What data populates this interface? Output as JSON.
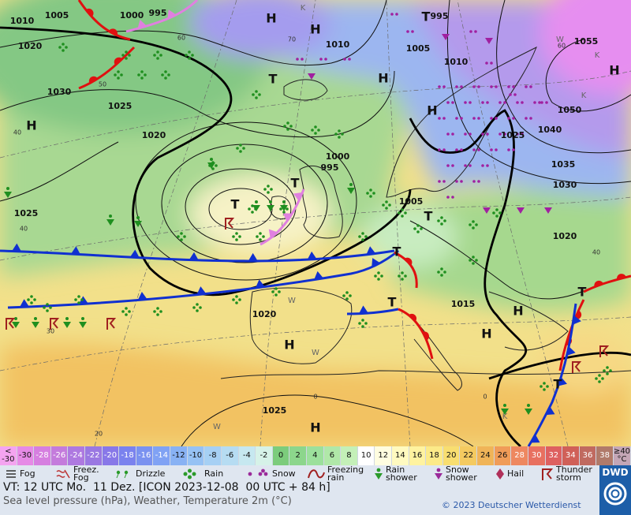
{
  "map": {
    "isobar_labels": [
      "1010",
      "1005",
      "1000",
      "995",
      "1020",
      "1030",
      "1025",
      "1020",
      "1000",
      "995",
      "1010",
      "995",
      "1005",
      "1010",
      "1055",
      "1050",
      "1040",
      "1025",
      "1035",
      "1030",
      "1020",
      "1005",
      "1025",
      "1015",
      "1020",
      "1025"
    ],
    "pressure_centers": [
      "H",
      "H",
      "H",
      "H",
      "H",
      "H",
      "H",
      "H",
      "H",
      "H",
      "T",
      "T",
      "T",
      "T",
      "T",
      "T",
      "T",
      "T",
      "T"
    ],
    "temperature_labels": [
      "40",
      "40",
      "30",
      "20",
      "60",
      "50",
      "70",
      "60",
      "40",
      "0",
      "0"
    ],
    "marker_letters": [
      "K",
      "K",
      "K",
      "K",
      "W",
      "W",
      "W",
      "W"
    ]
  },
  "color_scale": [
    {
      "label": "<\n-30",
      "color": "#f4a4f0"
    },
    {
      "label": "-30",
      "color": "#e68ae6"
    },
    {
      "label": "-28",
      "color": "#d67fe0"
    },
    {
      "label": "-26",
      "color": "#c47bdc"
    },
    {
      "label": "-24",
      "color": "#ae79e0"
    },
    {
      "label": "-22",
      "color": "#9a78e2"
    },
    {
      "label": "-20",
      "color": "#8878e8"
    },
    {
      "label": "-18",
      "color": "#7a82ee"
    },
    {
      "label": "-16",
      "color": "#7a92f0"
    },
    {
      "label": "-14",
      "color": "#80a2f4"
    },
    {
      "label": "-12",
      "color": "#88b2f4"
    },
    {
      "label": "-10",
      "color": "#96c2f4"
    },
    {
      "label": "-8",
      "color": "#a6d0f4"
    },
    {
      "label": "-6",
      "color": "#b6dcf2"
    },
    {
      "label": "-4",
      "color": "#c6e8f0"
    },
    {
      "label": "-2",
      "color": "#d6f2e8"
    },
    {
      "label": "0",
      "color": "#7ccc7c"
    },
    {
      "label": "2",
      "color": "#8cd68c"
    },
    {
      "label": "4",
      "color": "#9ce09c"
    },
    {
      "label": "6",
      "color": "#b0e8a8"
    },
    {
      "label": "8",
      "color": "#c4f0b8"
    },
    {
      "label": "10",
      "color": "#ffffff"
    },
    {
      "label": "12",
      "color": "#fffde0"
    },
    {
      "label": "14",
      "color": "#fffac0"
    },
    {
      "label": "16",
      "color": "#fff3a0"
    },
    {
      "label": "18",
      "color": "#fcea88"
    },
    {
      "label": "20",
      "color": "#f8de70"
    },
    {
      "label": "22",
      "color": "#f4ca60"
    },
    {
      "label": "24",
      "color": "#f0b458"
    },
    {
      "label": "26",
      "color": "#f09c58"
    },
    {
      "label": "28",
      "color": "#ee8860"
    },
    {
      "label": "30",
      "color": "#e87060"
    },
    {
      "label": "32",
      "color": "#de6060"
    },
    {
      "label": "34",
      "color": "#d06058"
    },
    {
      "label": "36",
      "color": "#c06a60"
    },
    {
      "label": "38",
      "color": "#b07a6a"
    },
    {
      "label": "≥40\n°C",
      "color": "#c4a6b6"
    }
  ],
  "legend": [
    "Fog",
    "Freez.\nFog",
    "Drizzle",
    "Rain",
    "Snow",
    "Freezing\nrain",
    "Rain\nshower",
    "Snow\nshower",
    "Hail",
    "Thunder\nstorm"
  ],
  "footer": {
    "valid_time": "VT: 12 UTC Mo.  11 Dez. [ICON 2023-12-08  00 UTC + 84 h]",
    "description": "Sea level pressure (hPa), Weather, Temperature 2m (°C)",
    "copyright": "© 2023 Deutscher Wetterdienst",
    "logo": "DWD"
  }
}
